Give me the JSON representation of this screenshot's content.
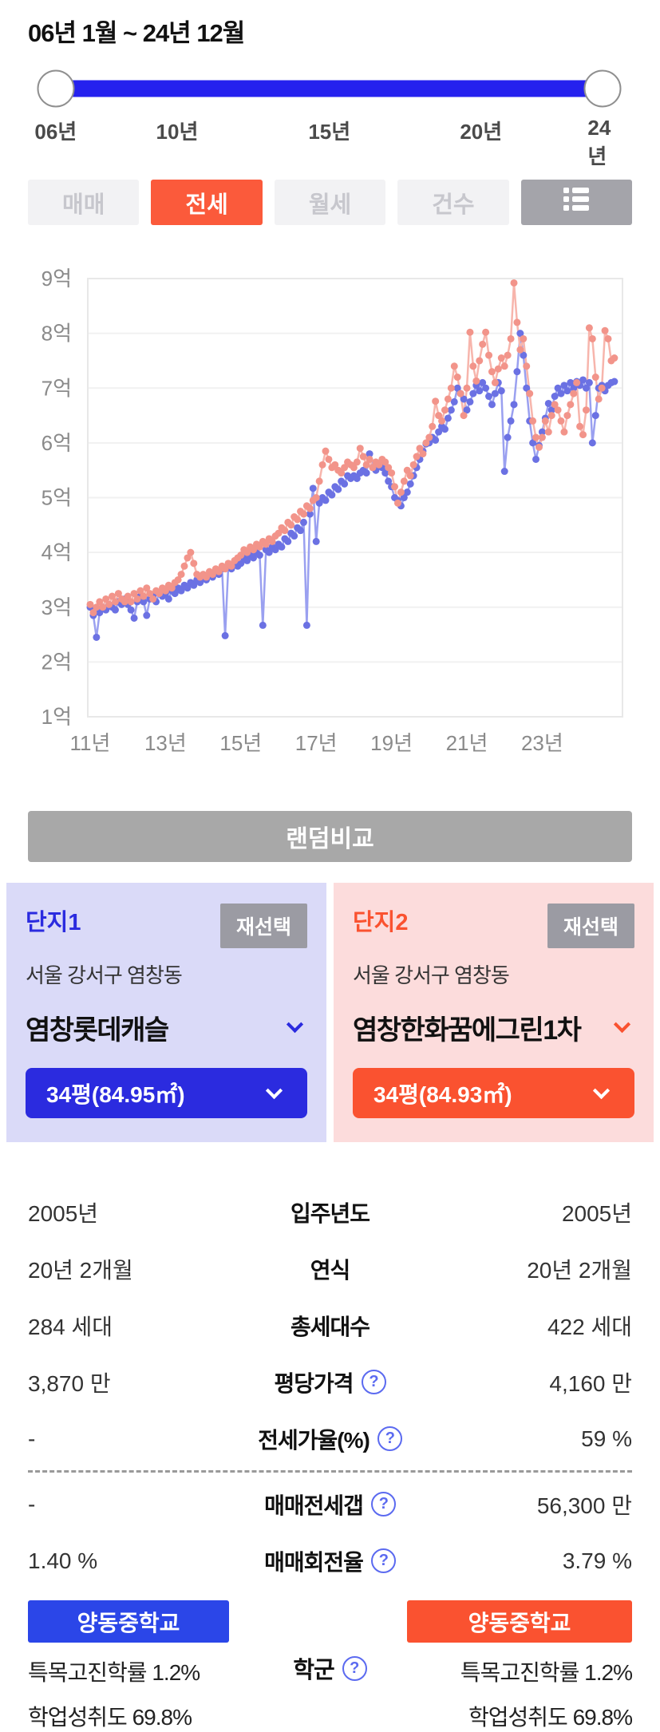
{
  "period": {
    "title": "06년 1월 ~ 24년 12월",
    "ticks": [
      "06년",
      "10년",
      "15년",
      "20년",
      "24년"
    ],
    "track_color": "#2521ee"
  },
  "tabs": [
    {
      "label": "매매",
      "active": false
    },
    {
      "label": "전세",
      "active": true
    },
    {
      "label": "월세",
      "active": false
    },
    {
      "label": "건수",
      "active": false
    },
    {
      "label": "",
      "active": false,
      "type": "icon",
      "icon": "list-view-icon"
    }
  ],
  "tab_active_color": "#fb5a3b",
  "chart_data": {
    "type": "line",
    "title": "",
    "x_start": "2011-01",
    "x_end": "2024-12",
    "x_unit": "month",
    "x_tick_labels": [
      "11년",
      "13년",
      "15년",
      "17년",
      "19년",
      "21년",
      "23년"
    ],
    "y_tick_labels": [
      "1억",
      "2억",
      "3억",
      "4억",
      "5억",
      "6억",
      "7억",
      "8억",
      "9억"
    ],
    "y_unit": "억",
    "ylim": [
      1,
      9
    ],
    "grid": true,
    "legend_position": "none",
    "series": [
      {
        "name": "단지1 염창롯데캐슬 전세",
        "color": "#6b71e3",
        "line_color": "#9aa0f0",
        "values": [
          3.0,
          2.85,
          2.45,
          2.9,
          3.0,
          2.95,
          3.05,
          3.0,
          2.95,
          3.1,
          3.05,
          3.15,
          3.05,
          2.95,
          2.8,
          3.1,
          3.2,
          3.1,
          2.85,
          3.15,
          3.2,
          3.1,
          3.25,
          3.2,
          3.25,
          3.15,
          3.3,
          3.25,
          3.35,
          3.3,
          3.4,
          3.35,
          3.45,
          3.4,
          3.5,
          3.45,
          3.55,
          3.5,
          3.6,
          3.55,
          3.65,
          3.6,
          3.7,
          2.48,
          3.75,
          3.7,
          3.8,
          3.75,
          3.8,
          3.9,
          3.85,
          3.95,
          3.9,
          4.0,
          3.95,
          2.67,
          4.05,
          4.0,
          4.1,
          4.05,
          4.15,
          4.1,
          4.25,
          4.2,
          4.35,
          4.3,
          4.45,
          4.4,
          4.55,
          2.67,
          4.7,
          5.17,
          4.2,
          4.9,
          5.0,
          4.95,
          5.1,
          5.05,
          5.2,
          5.15,
          5.3,
          5.25,
          5.4,
          5.35,
          5.4,
          5.35,
          5.45,
          5.5,
          5.45,
          5.8,
          5.55,
          5.5,
          5.6,
          5.55,
          5.45,
          5.3,
          5.2,
          5.0,
          4.95,
          4.85,
          5.0,
          5.1,
          5.25,
          5.4,
          5.55,
          5.7,
          5.85,
          5.98,
          6.0,
          6.1,
          6.05,
          6.2,
          6.3,
          6.25,
          6.45,
          6.6,
          6.75,
          7.0,
          6.9,
          6.8,
          6.6,
          6.75,
          6.9,
          7.05,
          6.95,
          7.1,
          7.0,
          6.85,
          6.7,
          6.9,
          7.1,
          6.95,
          5.48,
          6.1,
          6.4,
          6.7,
          7.3,
          8.0,
          7.6,
          7.0,
          6.4,
          6.0,
          5.7,
          5.95,
          6.2,
          6.45,
          6.72,
          6.6,
          6.85,
          7.0,
          6.9,
          7.05,
          6.95,
          7.1,
          7.0,
          7.12,
          7.05,
          7.15,
          7.0,
          7.1,
          6.0,
          6.5,
          7.0,
          7.05,
          6.95,
          7.05,
          7.1,
          7.12
        ]
      },
      {
        "name": "단지2 염창한화꿈에그린1차 전세",
        "color": "#f2948a",
        "line_color": "#f7b5ac",
        "values": [
          3.05,
          2.9,
          3.0,
          3.1,
          3.0,
          3.15,
          3.05,
          3.2,
          3.1,
          3.25,
          3.15,
          3.1,
          3.2,
          3.1,
          3.25,
          3.15,
          3.3,
          3.2,
          3.35,
          3.25,
          3.15,
          3.3,
          3.25,
          3.35,
          3.3,
          3.4,
          3.35,
          3.45,
          3.5,
          3.6,
          3.75,
          3.9,
          4.0,
          3.8,
          3.6,
          3.55,
          3.6,
          3.55,
          3.65,
          3.6,
          3.7,
          3.65,
          3.75,
          3.7,
          3.8,
          3.75,
          3.85,
          3.9,
          3.95,
          4.05,
          4.0,
          4.1,
          4.05,
          4.15,
          4.1,
          4.2,
          4.15,
          4.25,
          4.2,
          4.3,
          4.35,
          4.45,
          4.4,
          4.55,
          4.5,
          4.65,
          4.6,
          4.75,
          4.7,
          4.85,
          4.8,
          4.95,
          5.0,
          5.3,
          5.6,
          5.85,
          5.7,
          5.55,
          5.6,
          5.5,
          5.45,
          5.55,
          5.65,
          5.6,
          5.55,
          5.65,
          5.9,
          5.75,
          5.6,
          5.7,
          5.55,
          5.65,
          5.6,
          5.7,
          5.65,
          5.55,
          5.45,
          5.2,
          4.9,
          5.1,
          5.3,
          5.5,
          5.4,
          5.6,
          5.75,
          5.9,
          5.8,
          6.0,
          6.1,
          6.3,
          6.76,
          6.5,
          6.4,
          6.6,
          6.8,
          7.0,
          7.4,
          7.2,
          6.9,
          6.5,
          7.0,
          8.02,
          7.4,
          7.13,
          7.5,
          7.8,
          8.02,
          7.6,
          7.3,
          7.1,
          7.35,
          7.55,
          7.4,
          7.6,
          7.9,
          8.92,
          8.2,
          7.7,
          7.9,
          7.4,
          6.9,
          6.4,
          6.1,
          5.92,
          6.1,
          6.4,
          6.2,
          6.5,
          6.7,
          6.6,
          6.4,
          6.2,
          6.5,
          6.7,
          6.9,
          7.1,
          6.3,
          6.15,
          6.6,
          8.1,
          7.9,
          7.2,
          6.8,
          7.0,
          8.05,
          7.9,
          7.5,
          7.55
        ]
      }
    ]
  },
  "random_button": "랜덤비교",
  "complexes": [
    {
      "tag": "단지1",
      "reselect": "재선택",
      "address": "서울 강서구 염창동",
      "name": "염창롯데캐슬",
      "area_option": "34평(84.95㎡)",
      "accent": "#2b2bdf",
      "panel_bg": "#dadaf8"
    },
    {
      "tag": "단지2",
      "reselect": "재선택",
      "address": "서울 강서구 염창동",
      "name": "염창한화꿈에그린1차",
      "area_option": "34평(84.93㎡)",
      "accent": "#fa5230",
      "panel_bg": "#fcdcdc"
    }
  ],
  "table": {
    "rows": [
      {
        "left": "2005년",
        "label": "입주년도",
        "right": "2005년",
        "help": false
      },
      {
        "left": "20년 2개월",
        "label": "연식",
        "right": "20년 2개월",
        "help": false
      },
      {
        "left": "284 세대",
        "label": "총세대수",
        "right": "422 세대",
        "help": false
      },
      {
        "left": "3,870 만",
        "label": "평당가격",
        "right": "4,160 만",
        "help": true
      },
      {
        "left": "-",
        "label": "전세가율(%)",
        "right": "59 %",
        "help": true
      },
      {
        "left": "-",
        "label": "매매전세갭",
        "right": "56,300 만",
        "help": true
      },
      {
        "left": "1.40 %",
        "label": "매매회전율",
        "right": "3.79 %",
        "help": true
      }
    ],
    "divider_after_row": 4,
    "school": {
      "label": "학군",
      "help": true,
      "left": {
        "school_name": "양동중학교",
        "color": "#2b46e8",
        "stat1": "특목고진학률 1.2%",
        "stat2": "학업성취도 69.8%"
      },
      "right": {
        "school_name": "양동중학교",
        "color": "#fa5230",
        "stat1": "특목고진학률 1.2%",
        "stat2": "학업성취도 69.8%"
      }
    }
  },
  "icons": {
    "help": "?"
  }
}
